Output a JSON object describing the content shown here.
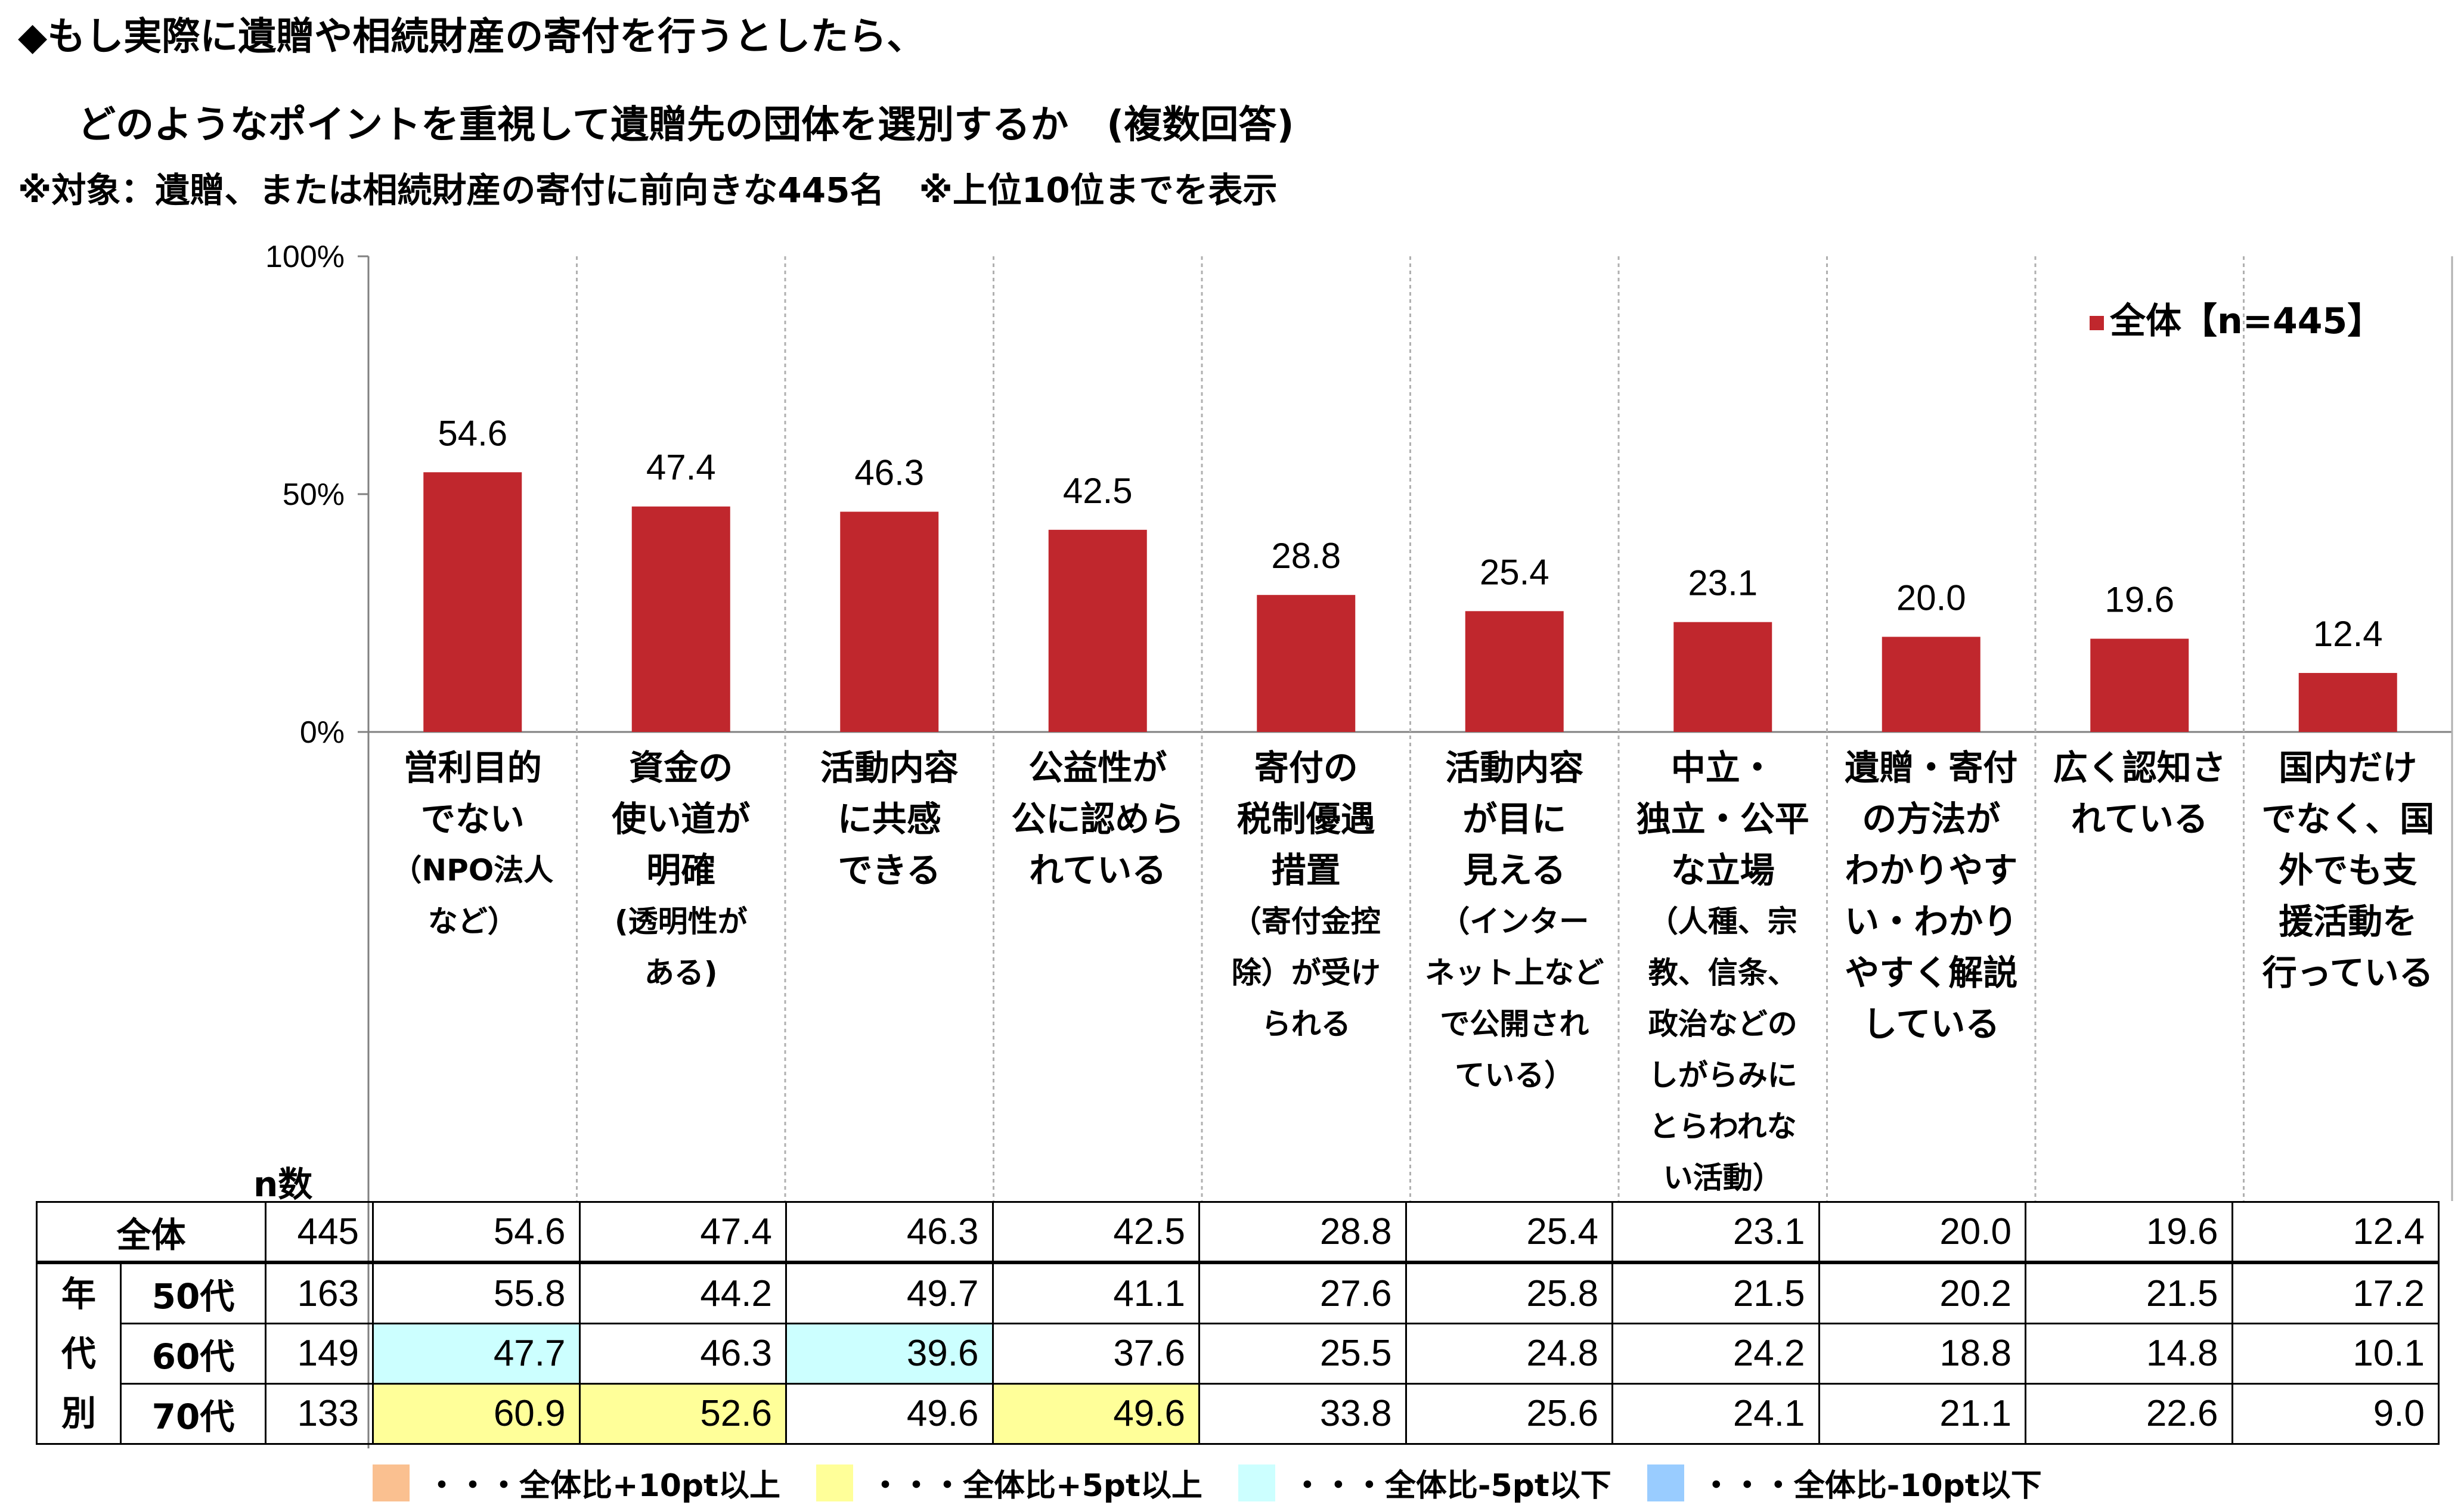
{
  "title": {
    "line1": "◆もし実際に遺贈や相続財産の寄付を行うとしたら、",
    "line2": "どのようなポイントを重視して遺贈先の団体を選別するか　(複数回答)",
    "subtitle": "※対象：遺贈、または相続財産の寄付に前向きな445名　※上位10位までを表示"
  },
  "chart_data": {
    "type": "bar",
    "categories": [
      {
        "main": "営利目的\nでない",
        "sub": "（NPO法人\nなど）"
      },
      {
        "main": "資金の\n使い道が\n明確",
        "sub": "(透明性が\nある)"
      },
      {
        "main": "活動内容\nに共感\nできる",
        "sub": ""
      },
      {
        "main": "公益性が\n公に認めら\nれている",
        "sub": ""
      },
      {
        "main": "寄付の\n税制優遇\n措置",
        "sub": "（寄付金控\n除）が受け\nられる"
      },
      {
        "main": "活動内容\nが目に\n見える",
        "sub": "（インター\nネット上など\nで公開され\nている）"
      },
      {
        "main": "中立・\n独立・公平\nな立場",
        "sub": "（人種、宗\n教、信条、\n政治などの\nしがらみに\nとらわれな\nい活動）"
      },
      {
        "main": "遺贈・寄付\nの方法が\nわかりやす\nい・わかり\nやすく解説\nしている",
        "sub": ""
      },
      {
        "main": "広く認知さ\nれている",
        "sub": ""
      },
      {
        "main": "国内だけ\nでなく、国\n外でも支\n援活動を\n行っている",
        "sub": ""
      }
    ],
    "series": [
      {
        "name": "全体【n=445】",
        "values": [
          54.6,
          47.4,
          46.3,
          42.5,
          28.8,
          25.4,
          23.1,
          20.0,
          19.6,
          12.4
        ],
        "color": "#c0272d"
      }
    ],
    "value_labels": [
      "54.6",
      "47.4",
      "46.3",
      "42.5",
      "28.8",
      "25.4",
      "23.1",
      "20.0",
      "19.6",
      "12.4"
    ],
    "yticks": [
      "100%",
      "50%",
      "0%"
    ],
    "ylim": [
      0,
      100
    ],
    "grid": "vertical separators",
    "legend_position": "top-right"
  },
  "table": {
    "n_header": "n数",
    "group_label": [
      "年",
      "代",
      "別"
    ],
    "rows": [
      {
        "label": "全体",
        "n": "445",
        "values": [
          "54.6",
          "47.4",
          "46.3",
          "42.5",
          "28.8",
          "25.4",
          "23.1",
          "20.0",
          "19.6",
          "12.4"
        ],
        "highlight": [
          "",
          "",
          "",
          "",
          "",
          "",
          "",
          "",
          "",
          ""
        ]
      },
      {
        "label": "50代",
        "n": "163",
        "values": [
          "55.8",
          "44.2",
          "49.7",
          "41.1",
          "27.6",
          "25.8",
          "21.5",
          "20.2",
          "21.5",
          "17.2"
        ],
        "highlight": [
          "",
          "",
          "",
          "",
          "",
          "",
          "",
          "",
          "",
          ""
        ]
      },
      {
        "label": "60代",
        "n": "149",
        "values": [
          "47.7",
          "46.3",
          "39.6",
          "37.6",
          "25.5",
          "24.8",
          "24.2",
          "18.8",
          "14.8",
          "10.1"
        ],
        "highlight": [
          "cyan",
          "",
          "cyan",
          "",
          "",
          "",
          "",
          "",
          "",
          ""
        ]
      },
      {
        "label": "70代",
        "n": "133",
        "values": [
          "60.9",
          "52.6",
          "49.6",
          "49.6",
          "33.8",
          "25.6",
          "24.1",
          "21.1",
          "22.6",
          "9.0"
        ],
        "highlight": [
          "yellow",
          "yellow",
          "",
          "yellow",
          "",
          "",
          "",
          "",
          "",
          ""
        ]
      }
    ]
  },
  "key": [
    {
      "text": "・・・全体比+10pt以上",
      "color": "#fac090"
    },
    {
      "text": "・・・全体比+5pt以上",
      "color": "#ffff99"
    },
    {
      "text": "・・・全体比-5pt以下",
      "color": "#ccffff"
    },
    {
      "text": "・・・全体比-10pt以下",
      "color": "#99ccff"
    }
  ]
}
